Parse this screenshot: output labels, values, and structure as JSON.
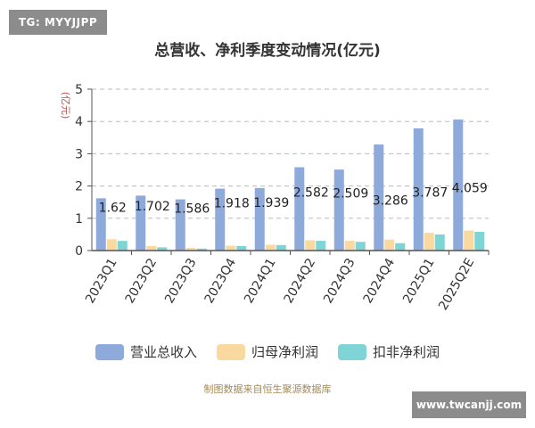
{
  "watermark_top": "TG: MYYJJPP",
  "watermark_bottom": "www.twcanjj.com",
  "source_note": "制图数据来自恒生聚源数据库",
  "colors": {
    "revenue": "#8eaadb",
    "parent_profit": "#fad9a1",
    "deducted_profit": "#7fd4d6",
    "axis": "#555555",
    "grid": "#bbbbbb",
    "unit": "#c0504d"
  },
  "chart_data": {
    "type": "bar",
    "title": "总营收、净利季度变动情况(亿元)",
    "unit_label": "(亿元)",
    "categories": [
      "2023Q1",
      "2023Q2",
      "2023Q3",
      "2023Q4",
      "2024Q1",
      "2024Q2",
      "2024Q3",
      "2024Q4",
      "2025Q1",
      "2025Q2E"
    ],
    "ylim": [
      0,
      5
    ],
    "yticks": [
      "0",
      "1",
      "2",
      "3",
      "4",
      "5"
    ],
    "grid": true,
    "legend_position": "bottom",
    "series": [
      {
        "name": "营业总收入",
        "values": [
          1.62,
          1.702,
          1.586,
          1.918,
          1.939,
          2.582,
          2.509,
          3.286,
          3.787,
          4.059
        ],
        "data_labels": [
          "1.62",
          "1.702",
          "1.586",
          "1.918",
          "1.939",
          "2.582",
          "2.509",
          "3.286",
          "3.787",
          "4.059"
        ]
      },
      {
        "name": "归母净利润",
        "values": [
          0.35,
          0.14,
          0.08,
          0.15,
          0.18,
          0.32,
          0.3,
          0.34,
          0.55,
          0.62
        ]
      },
      {
        "name": "扣非净利润",
        "values": [
          0.3,
          0.1,
          0.06,
          0.14,
          0.17,
          0.3,
          0.27,
          0.23,
          0.5,
          0.58
        ]
      }
    ]
  }
}
